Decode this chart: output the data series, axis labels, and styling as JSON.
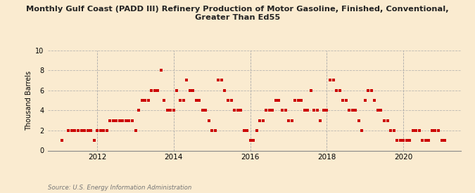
{
  "title": "Monthly Gulf Coast (PADD III) Refinery Production of Motor Gasoline, Finished, Conventional,\nGreater Than Ed55",
  "ylabel": "Thousand Barrels",
  "source": "Source: U.S. Energy Information Administration",
  "background_color": "#faebd0",
  "marker_color": "#cc0000",
  "ylim": [
    0,
    10
  ],
  "yticks": [
    0,
    2,
    4,
    6,
    8,
    10
  ],
  "xlim": [
    2010.7,
    2021.5
  ],
  "xticks": [
    2012,
    2014,
    2016,
    2018,
    2020
  ],
  "data_points": [
    [
      2011.083,
      1
    ],
    [
      2011.25,
      2
    ],
    [
      2011.333,
      2
    ],
    [
      2011.417,
      2
    ],
    [
      2011.5,
      2
    ],
    [
      2011.583,
      2
    ],
    [
      2011.667,
      2
    ],
    [
      2011.75,
      2
    ],
    [
      2011.833,
      2
    ],
    [
      2011.917,
      1
    ],
    [
      2012.0,
      2
    ],
    [
      2012.083,
      2
    ],
    [
      2012.167,
      2
    ],
    [
      2012.25,
      2
    ],
    [
      2012.333,
      3
    ],
    [
      2012.417,
      3
    ],
    [
      2012.5,
      3
    ],
    [
      2012.583,
      3
    ],
    [
      2012.667,
      3
    ],
    [
      2012.75,
      3
    ],
    [
      2012.833,
      3
    ],
    [
      2012.917,
      3
    ],
    [
      2013.0,
      2
    ],
    [
      2013.083,
      4
    ],
    [
      2013.167,
      5
    ],
    [
      2013.25,
      5
    ],
    [
      2013.333,
      5
    ],
    [
      2013.417,
      6
    ],
    [
      2013.5,
      6
    ],
    [
      2013.583,
      6
    ],
    [
      2013.667,
      8
    ],
    [
      2013.75,
      5
    ],
    [
      2013.833,
      4
    ],
    [
      2013.917,
      4
    ],
    [
      2014.0,
      4
    ],
    [
      2014.083,
      6
    ],
    [
      2014.167,
      5
    ],
    [
      2014.25,
      5
    ],
    [
      2014.333,
      7
    ],
    [
      2014.417,
      6
    ],
    [
      2014.5,
      6
    ],
    [
      2014.583,
      5
    ],
    [
      2014.667,
      5
    ],
    [
      2014.75,
      4
    ],
    [
      2014.833,
      4
    ],
    [
      2014.917,
      3
    ],
    [
      2015.0,
      2
    ],
    [
      2015.083,
      2
    ],
    [
      2015.167,
      7
    ],
    [
      2015.25,
      7
    ],
    [
      2015.333,
      6
    ],
    [
      2015.417,
      5
    ],
    [
      2015.5,
      5
    ],
    [
      2015.583,
      4
    ],
    [
      2015.667,
      4
    ],
    [
      2015.75,
      4
    ],
    [
      2015.833,
      2
    ],
    [
      2015.917,
      2
    ],
    [
      2016.0,
      1
    ],
    [
      2016.083,
      1
    ],
    [
      2016.167,
      2
    ],
    [
      2016.25,
      3
    ],
    [
      2016.333,
      3
    ],
    [
      2016.417,
      4
    ],
    [
      2016.5,
      4
    ],
    [
      2016.583,
      4
    ],
    [
      2016.667,
      5
    ],
    [
      2016.75,
      5
    ],
    [
      2016.833,
      4
    ],
    [
      2016.917,
      4
    ],
    [
      2017.0,
      3
    ],
    [
      2017.083,
      3
    ],
    [
      2017.167,
      5
    ],
    [
      2017.25,
      5
    ],
    [
      2017.333,
      5
    ],
    [
      2017.417,
      4
    ],
    [
      2017.5,
      4
    ],
    [
      2017.583,
      6
    ],
    [
      2017.667,
      4
    ],
    [
      2017.75,
      4
    ],
    [
      2017.833,
      3
    ],
    [
      2017.917,
      4
    ],
    [
      2018.0,
      4
    ],
    [
      2018.083,
      7
    ],
    [
      2018.167,
      7
    ],
    [
      2018.25,
      6
    ],
    [
      2018.333,
      6
    ],
    [
      2018.417,
      5
    ],
    [
      2018.5,
      5
    ],
    [
      2018.583,
      4
    ],
    [
      2018.667,
      4
    ],
    [
      2018.75,
      4
    ],
    [
      2018.833,
      3
    ],
    [
      2018.917,
      2
    ],
    [
      2019.0,
      5
    ],
    [
      2019.083,
      6
    ],
    [
      2019.167,
      6
    ],
    [
      2019.25,
      5
    ],
    [
      2019.333,
      4
    ],
    [
      2019.417,
      4
    ],
    [
      2019.5,
      3
    ],
    [
      2019.583,
      3
    ],
    [
      2019.667,
      2
    ],
    [
      2019.75,
      2
    ],
    [
      2019.833,
      1
    ],
    [
      2019.917,
      1
    ],
    [
      2020.0,
      1
    ],
    [
      2020.083,
      1
    ],
    [
      2020.167,
      1
    ],
    [
      2020.25,
      2
    ],
    [
      2020.333,
      2
    ],
    [
      2020.417,
      2
    ],
    [
      2020.5,
      1
    ],
    [
      2020.583,
      1
    ],
    [
      2020.667,
      1
    ],
    [
      2020.75,
      2
    ],
    [
      2020.833,
      2
    ],
    [
      2020.917,
      2
    ],
    [
      2021.0,
      1
    ],
    [
      2021.083,
      1
    ]
  ]
}
